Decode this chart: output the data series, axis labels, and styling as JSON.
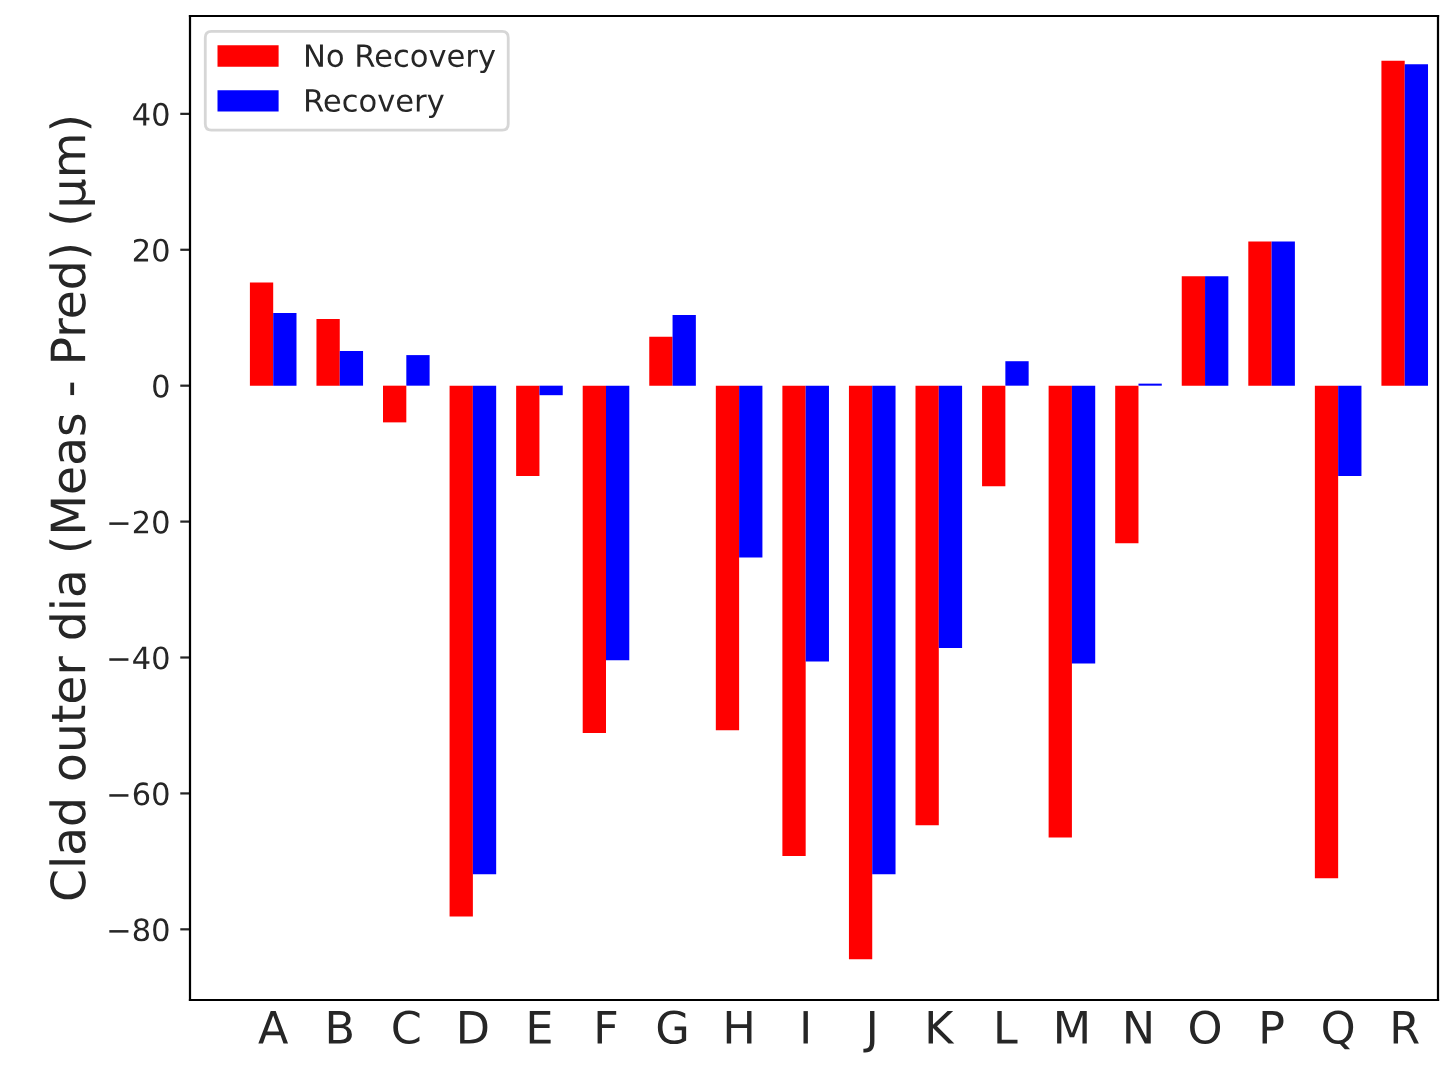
{
  "chart_data": {
    "type": "bar",
    "ylabel": "Clad outer dia (Meas - Pred) (μm)",
    "categories": [
      "A",
      "B",
      "C",
      "D",
      "E",
      "F",
      "G",
      "H",
      "I",
      "J",
      "K",
      "L",
      "M",
      "N",
      "O",
      "P",
      "Q",
      "R"
    ],
    "series": [
      {
        "name": "No Recovery",
        "color": "#ff0000",
        "values": [
          15.2,
          9.8,
          -5.4,
          -78.1,
          -13.3,
          -51.1,
          7.2,
          -50.7,
          -69.2,
          -84.4,
          -64.7,
          -14.8,
          -66.5,
          -23.2,
          16.1,
          21.2,
          -72.5,
          47.8
        ]
      },
      {
        "name": "Recovery",
        "color": "#0000ff",
        "values": [
          10.7,
          5.1,
          4.5,
          -71.9,
          -1.4,
          -40.4,
          10.4,
          -25.3,
          -40.6,
          -71.9,
          -38.6,
          3.6,
          -40.9,
          0.3,
          16.1,
          21.2,
          -13.3,
          47.3
        ]
      }
    ],
    "ylim": [
      -90.4,
      54.4
    ],
    "yticks": [
      {
        "value": -80,
        "label": "−80"
      },
      {
        "value": -60,
        "label": "−60"
      },
      {
        "value": -40,
        "label": "−40"
      },
      {
        "value": -20,
        "label": "−20"
      },
      0,
      20,
      40
    ],
    "grid": false,
    "legend": "top left"
  }
}
